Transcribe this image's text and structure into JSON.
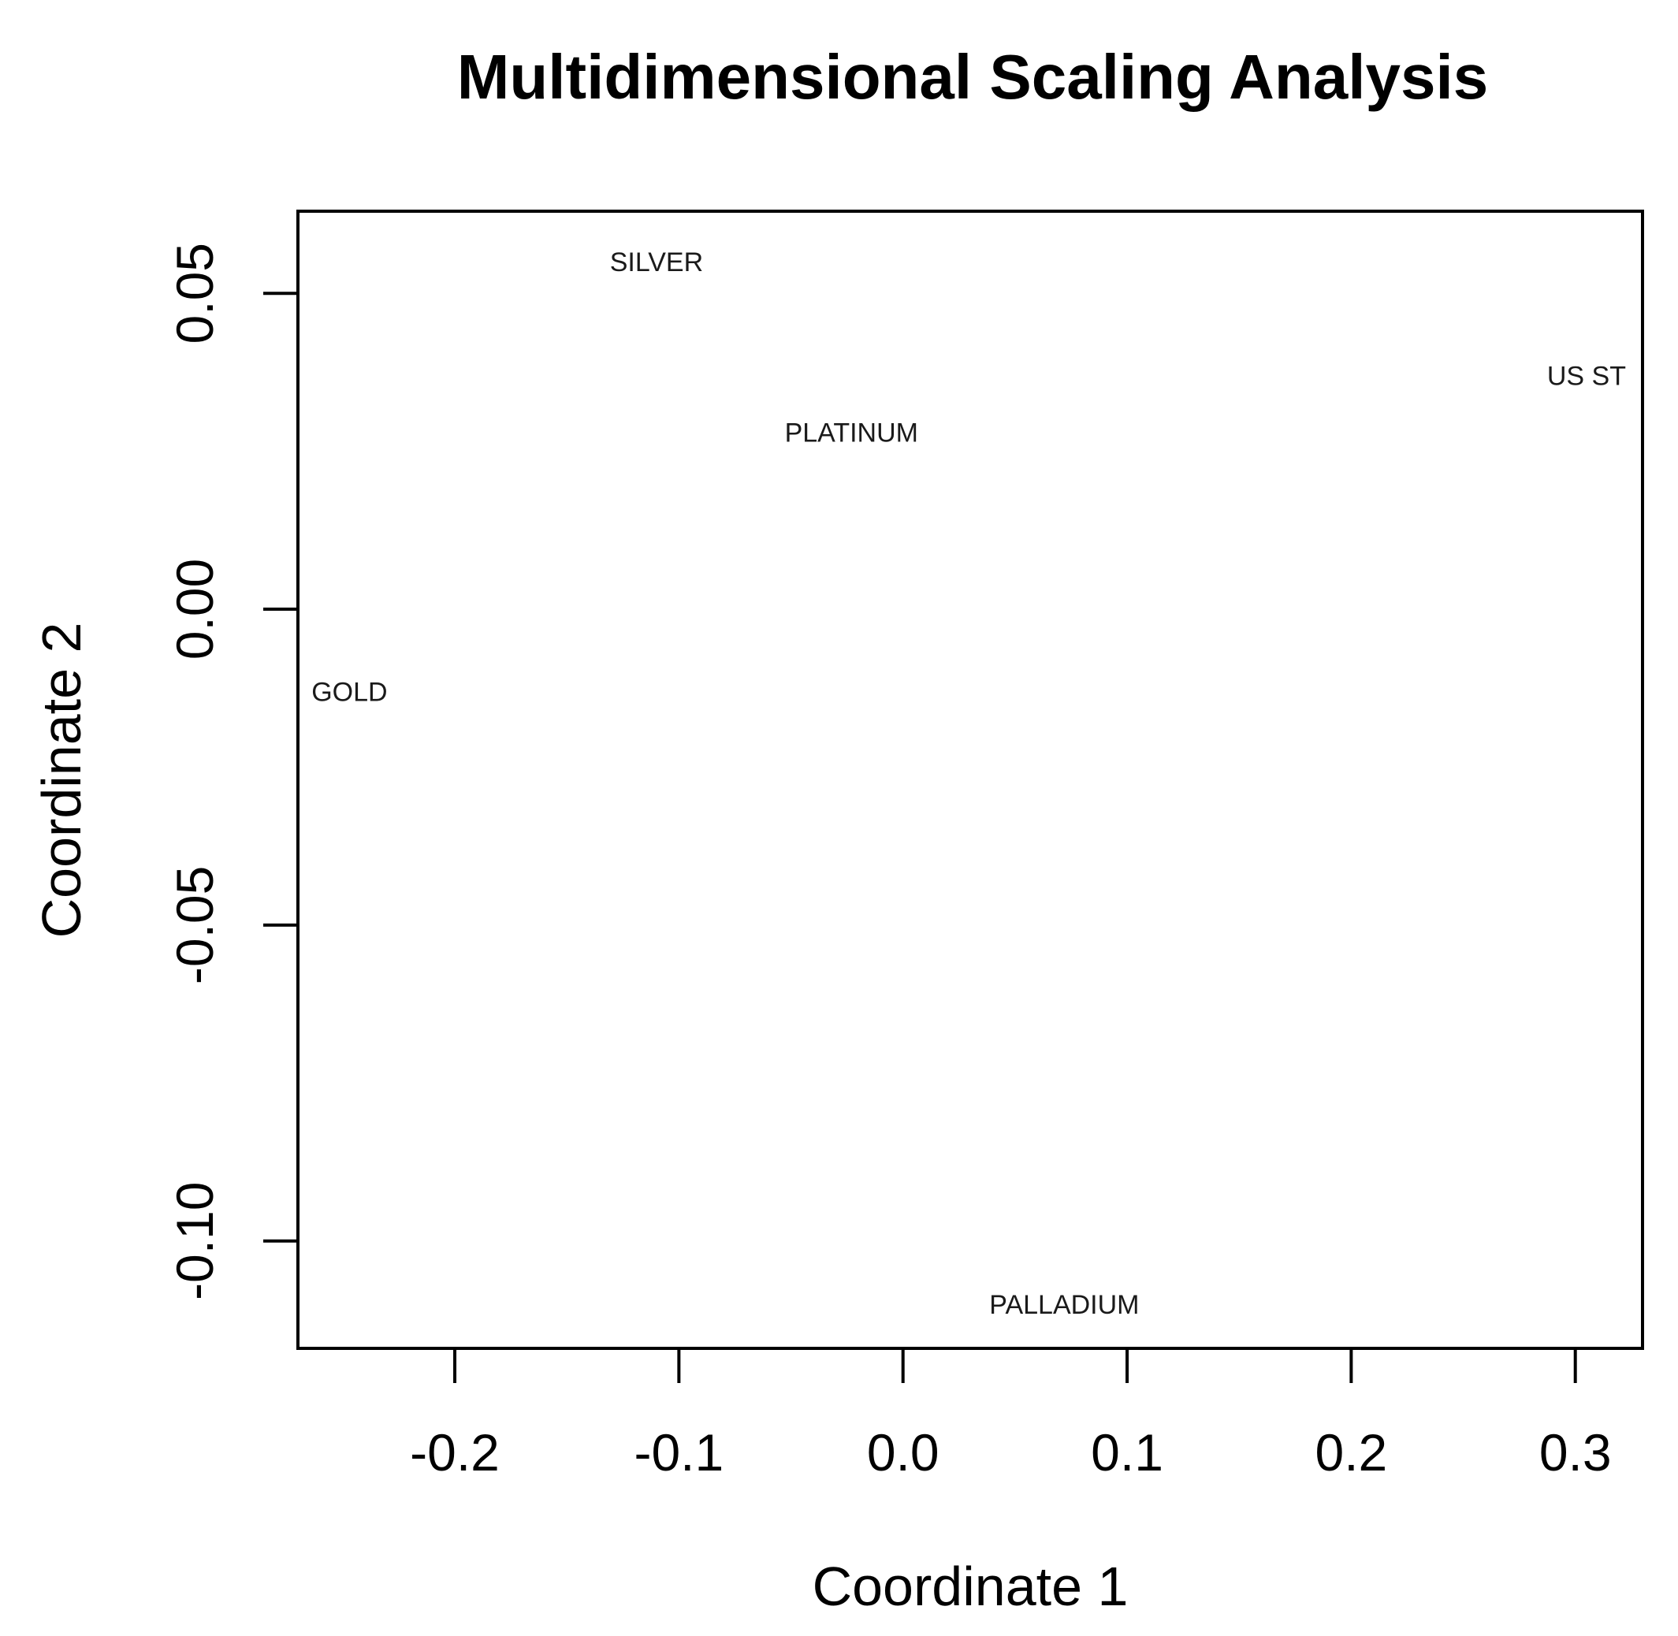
{
  "chart_data": {
    "type": "scatter",
    "title": "Multidimensional Scaling Analysis",
    "xlabel": "Coordinate 1",
    "ylabel": "Coordinate 2",
    "xlim": [
      -0.27,
      0.33
    ],
    "ylim": [
      -0.117,
      0.063
    ],
    "xticks": [
      -0.2,
      -0.1,
      0.0,
      0.1,
      0.2,
      0.3
    ],
    "xtick_labels": [
      "-0.2",
      "-0.1",
      "0.0",
      "0.1",
      "0.2",
      "0.3"
    ],
    "yticks": [
      0.05,
      0.0,
      -0.05,
      -0.1
    ],
    "ytick_labels": [
      "0.05",
      "0.00",
      "-0.05",
      "-0.10"
    ],
    "grid": false,
    "legend": "none",
    "points": [
      {
        "label": "SILVER",
        "x": -0.11,
        "y": 0.055
      },
      {
        "label": "US ST",
        "x": 0.305,
        "y": 0.037
      },
      {
        "label": "PLATINUM",
        "x": -0.023,
        "y": 0.028
      },
      {
        "label": "GOLD",
        "x": -0.247,
        "y": -0.013
      },
      {
        "label": "PALLADIUM",
        "x": 0.072,
        "y": -0.11
      }
    ]
  }
}
